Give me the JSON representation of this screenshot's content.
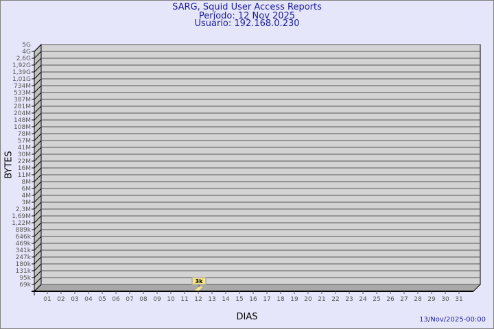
{
  "chart_data": {
    "type": "bar",
    "title": "SARG, Squid User Access Reports",
    "subtitle": [
      "Período: 12 Nov 2025",
      "Usuário: 192.168.0.230"
    ],
    "xlabel": "DIAS",
    "ylabel": "BYTES",
    "categories": [
      "01",
      "02",
      "03",
      "04",
      "05",
      "06",
      "07",
      "08",
      "09",
      "10",
      "11",
      "12",
      "13",
      "14",
      "15",
      "16",
      "17",
      "18",
      "19",
      "20",
      "21",
      "22",
      "23",
      "24",
      "25",
      "26",
      "27",
      "28",
      "29",
      "30",
      "31"
    ],
    "y_ticks": [
      "5G",
      "4G",
      "2,6G",
      "1,92G",
      "1,39G",
      "1,01G",
      "734M",
      "533M",
      "387M",
      "281M",
      "204M",
      "148M",
      "108M",
      "78M",
      "57M",
      "41M",
      "30M",
      "22M",
      "16M",
      "11M",
      "8M",
      "6M",
      "4M",
      "3M",
      "2,3M",
      "1,69M",
      "1,22M",
      "889k",
      "646k",
      "469k",
      "341k",
      "247k",
      "180k",
      "131k",
      "95k",
      "69k"
    ],
    "y_scale": "log",
    "grid": true,
    "series": [
      {
        "values": [
          0,
          0,
          0,
          0,
          0,
          0,
          0,
          0,
          0,
          0,
          0,
          3000,
          0,
          0,
          0,
          0,
          0,
          0,
          0,
          0,
          0,
          0,
          0,
          0,
          0,
          0,
          0,
          0,
          0,
          0,
          0
        ],
        "labels": {
          "12": "3k"
        }
      }
    ],
    "colors": {
      "bar": "#f5e58a",
      "label_bg": "#f5e58a",
      "title": "#1a1a9a",
      "panel": "#d3d3d3",
      "wall": "#c0c0c0"
    }
  },
  "footer": {
    "timestamp": "13/Nov/2025-00:00"
  }
}
